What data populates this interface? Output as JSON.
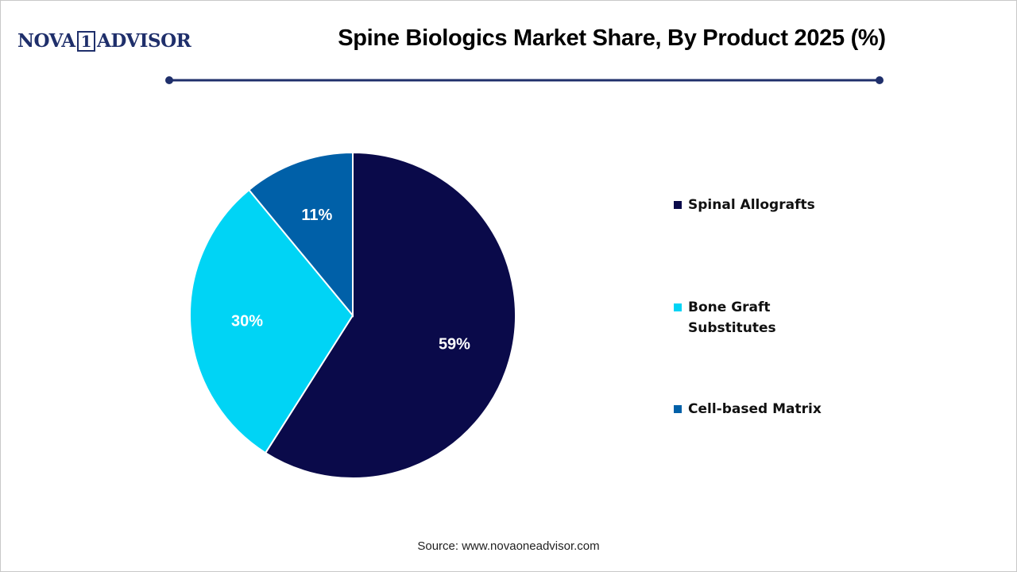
{
  "logo": {
    "left": "NOVA",
    "mark": "1",
    "right": "ADVISOR"
  },
  "chart_data": {
    "type": "pie",
    "title": "Spine Biologics Market Share, By Product 2025 (%)",
    "categories": [
      "Spinal Allografts",
      "Bone Graft Substitutes",
      "Cell-based Matrix"
    ],
    "values": [
      59,
      30,
      11
    ],
    "value_labels": [
      "59%",
      "30%",
      "11%"
    ],
    "colors": [
      "#0a0a4a",
      "#00d4f5",
      "#0060a8"
    ],
    "legend": "right",
    "source": "Source: www.novaoneadvisor.com"
  }
}
